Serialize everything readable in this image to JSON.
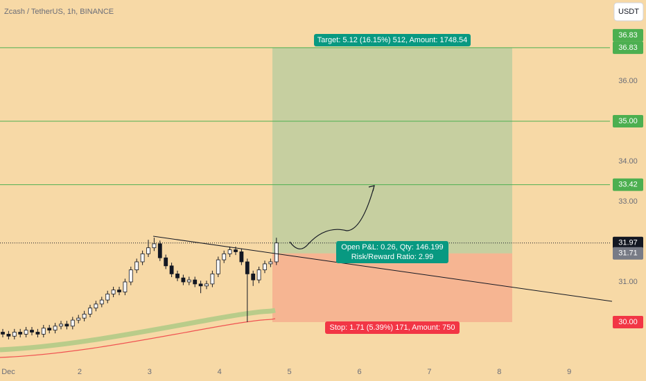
{
  "header": {
    "symbol": "Zcash / TetherUS, 1h, BINANCE",
    "currency_button": "USDT"
  },
  "chart_data": {
    "type": "candlestick",
    "ylim": [
      28.879,
      38.017
    ],
    "yticks": [
      {
        "value": 36,
        "label": "36.00"
      },
      {
        "value": 34,
        "label": "34.00"
      },
      {
        "value": 33,
        "label": "33.00"
      },
      {
        "value": 31,
        "label": "31.00"
      }
    ],
    "time_axis": [
      "Dec",
      "2",
      "3",
      "4",
      "5",
      "6",
      "7",
      "8",
      "9"
    ],
    "open": [
      29.75,
      29.7,
      29.65,
      29.75,
      29.7,
      29.8,
      29.75,
      29.7,
      29.85,
      29.8,
      29.9,
      29.95,
      29.9,
      30.05,
      30.1,
      30.2,
      30.35,
      30.45,
      30.55,
      30.7,
      30.8,
      30.75,
      31.0,
      31.3,
      31.5,
      31.7,
      31.85,
      31.95,
      31.6,
      31.4,
      31.2,
      31.1,
      31.0,
      31.05,
      30.95,
      30.9,
      30.95,
      31.2,
      31.55,
      31.7,
      31.8,
      31.75,
      31.5,
      31.2,
      31.05,
      31.3,
      31.45,
      31.5
    ],
    "high": [
      29.83,
      29.78,
      29.83,
      29.83,
      29.88,
      29.88,
      29.83,
      29.93,
      29.93,
      29.98,
      30.03,
      30.03,
      30.13,
      30.18,
      30.28,
      30.43,
      30.53,
      30.63,
      30.78,
      30.88,
      30.88,
      31.08,
      31.38,
      31.58,
      31.78,
      32.05,
      32.1,
      32.03,
      31.68,
      31.48,
      31.28,
      31.18,
      31.13,
      31.13,
      31.03,
      31.03,
      31.28,
      31.63,
      31.78,
      31.88,
      31.88,
      31.83,
      31.58,
      31.28,
      31.38,
      31.53,
      31.58,
      32.1
    ],
    "low": [
      29.62,
      29.57,
      29.57,
      29.62,
      29.62,
      29.67,
      29.62,
      29.62,
      29.72,
      29.72,
      29.82,
      29.82,
      29.82,
      29.97,
      30.02,
      30.12,
      30.27,
      30.37,
      30.47,
      30.62,
      30.67,
      30.67,
      30.92,
      31.22,
      31.42,
      31.62,
      31.77,
      31.52,
      31.32,
      31.12,
      31.02,
      30.92,
      30.92,
      30.87,
      30.72,
      30.82,
      30.87,
      31.12,
      31.47,
      31.62,
      31.67,
      31.42,
      30.0,
      30.9,
      30.97,
      31.22,
      31.37,
      31.42
    ],
    "close": [
      29.7,
      29.65,
      29.75,
      29.7,
      29.8,
      29.75,
      29.7,
      29.85,
      29.8,
      29.9,
      29.95,
      29.9,
      30.05,
      30.1,
      30.2,
      30.35,
      30.45,
      30.55,
      30.7,
      30.8,
      30.75,
      31.0,
      31.3,
      31.5,
      31.7,
      31.85,
      31.95,
      31.6,
      31.4,
      31.2,
      31.1,
      31.0,
      31.05,
      30.95,
      30.9,
      30.95,
      31.2,
      31.55,
      31.7,
      31.8,
      31.75,
      31.5,
      31.2,
      31.05,
      31.3,
      31.45,
      31.5,
      31.97
    ],
    "position": {
      "target": 36.83,
      "entry": 31.71,
      "stop": 30.0,
      "target_label": "Target: 5.12 (16.15%) 512, Amount: 1748.54",
      "pnl_label": [
        "Open P&L: 0.26, Qty: 146.199",
        "Risk/Reward Ratio: 2.99"
      ],
      "stop_label": "Stop: 1.71 (5.39%) 171, Amount: 750"
    },
    "levels": [
      36.83,
      35.0,
      33.42
    ],
    "price_labels": [
      {
        "value": 36.83,
        "label": "36.83",
        "color": "#4caf50"
      },
      {
        "value": 36.83,
        "label": "36.83",
        "color": "#4caf50"
      },
      {
        "value": 35.0,
        "label": "35.00",
        "color": "#4caf50"
      },
      {
        "value": 33.42,
        "label": "33.42",
        "color": "#4caf50"
      },
      {
        "value": 31.97,
        "label": "31.97",
        "color": "#131722"
      },
      {
        "value": 31.71,
        "label": "31.71",
        "color": "#787b86"
      },
      {
        "value": 30.0,
        "label": "30.00",
        "color": "#f23645"
      }
    ]
  }
}
